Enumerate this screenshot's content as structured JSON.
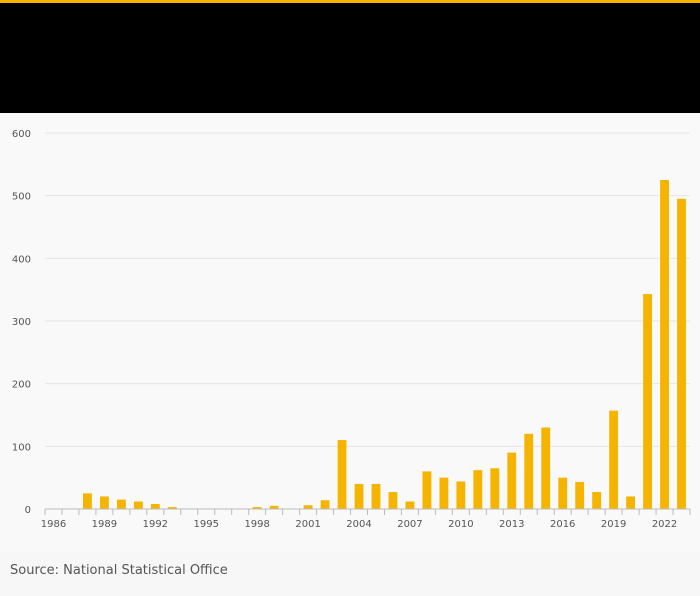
{
  "colors": {
    "accent": "#f5b400",
    "header_background": "#000000",
    "bar": "#f5b400"
  },
  "source": "Source: National Statistical Office",
  "chart_data": {
    "type": "bar",
    "title": "",
    "xlabel": "",
    "ylabel": "",
    "ylim": [
      0,
      600
    ],
    "yticks": [
      0,
      100,
      200,
      300,
      400,
      500,
      600
    ],
    "grid": true,
    "legend": "none",
    "x_tick_labels": [
      "1986",
      "1989",
      "1992",
      "1995",
      "1998",
      "2001",
      "2004",
      "2007",
      "2010",
      "2013",
      "2016",
      "2019",
      "2022"
    ],
    "categories": [
      "1986",
      "1987",
      "1988",
      "1989",
      "1990",
      "1991",
      "1992",
      "1993",
      "1994",
      "1995",
      "1996",
      "1997",
      "1998",
      "1999",
      "2000",
      "2001",
      "2002",
      "2003",
      "2004",
      "2005",
      "2006",
      "2007",
      "2008",
      "2009",
      "2010",
      "2011",
      "2012",
      "2013",
      "2014",
      "2015",
      "2016",
      "2017",
      "2018",
      "2019",
      "2020",
      "2021",
      "2022",
      "2023"
    ],
    "values": [
      0,
      0,
      25,
      20,
      15,
      12,
      8,
      3,
      0,
      0,
      0,
      0,
      3,
      5,
      0,
      6,
      14,
      110,
      40,
      40,
      27,
      12,
      60,
      50,
      44,
      62,
      65,
      90,
      120,
      130,
      50,
      43,
      27,
      157,
      20,
      343,
      525,
      495
    ]
  }
}
